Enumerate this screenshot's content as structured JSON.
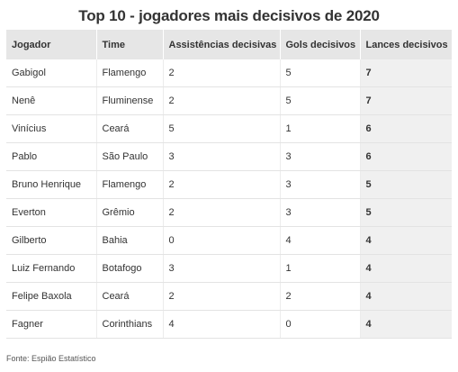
{
  "title": "Top 10 - jogadores mais decisivos de 2020",
  "columns": [
    "Jogador",
    "Time",
    "Assistências decisivas",
    "Gols decisivos",
    "Lances decisivos"
  ],
  "rows": [
    [
      "Gabigol",
      "Flamengo",
      "2",
      "5",
      "7"
    ],
    [
      "Nenê",
      "Fluminense",
      "2",
      "5",
      "7"
    ],
    [
      "Vinícius",
      "Ceará",
      "5",
      "1",
      "6"
    ],
    [
      "Pablo",
      "São Paulo",
      "3",
      "3",
      "6"
    ],
    [
      "Bruno Henrique",
      "Flamengo",
      "2",
      "3",
      "5"
    ],
    [
      "Everton",
      "Grêmio",
      "2",
      "3",
      "5"
    ],
    [
      "Gilberto",
      "Bahia",
      "0",
      "4",
      "4"
    ],
    [
      "Luiz Fernando",
      "Botafogo",
      "3",
      "1",
      "4"
    ],
    [
      "Felipe Baxola",
      "Ceará",
      "2",
      "2",
      "4"
    ],
    [
      "Fagner",
      "Corinthians",
      "4",
      "0",
      "4"
    ]
  ],
  "source": "Fonte: Espião Estatístico"
}
